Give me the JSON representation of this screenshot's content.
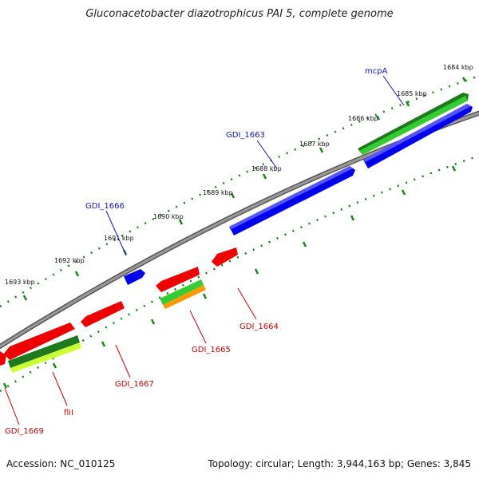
{
  "title": "Gluconacetobacter diazotrophicus PAI 5, complete genome",
  "footer": {
    "accession": "Accession: NC_010125",
    "topology": "Topology: circular; Length: 3,944,163 bp; Genes: 3,845"
  },
  "ticks": [
    "1684 kbp",
    "1685 kbp",
    "1686 kbp",
    "1687 kbp",
    "1688 kbp",
    "1689 kbp",
    "1690 kbp",
    "1691 kbp",
    "1692 kbp",
    "1693 kbp"
  ],
  "genes": [
    {
      "label": "mcpA",
      "color": "#1010cc"
    },
    {
      "label": "GDI_1663",
      "color": "#1010cc"
    },
    {
      "label": "GDI_1666",
      "color": "#1010cc"
    },
    {
      "label": "GDI_1664",
      "color": "#cc0000"
    },
    {
      "label": "GDI_1665",
      "color": "#cc0000"
    },
    {
      "label": "GDI_1667",
      "color": "#cc0000"
    },
    {
      "label": "fliI",
      "color": "#cc0000"
    },
    {
      "label": "GDI_1669",
      "color": "#cc0000"
    }
  ],
  "colors": {
    "forward_cds": "#0000ee",
    "reverse_cds": "#ee0000",
    "gene_dark_green": "#1e7a1e",
    "gene_light_green": "#33cc33",
    "gene_yellow_green": "#ccff33",
    "gene_orange": "#ff9900",
    "backbone": "#7a7a7a",
    "tick_green": "#118811"
  }
}
